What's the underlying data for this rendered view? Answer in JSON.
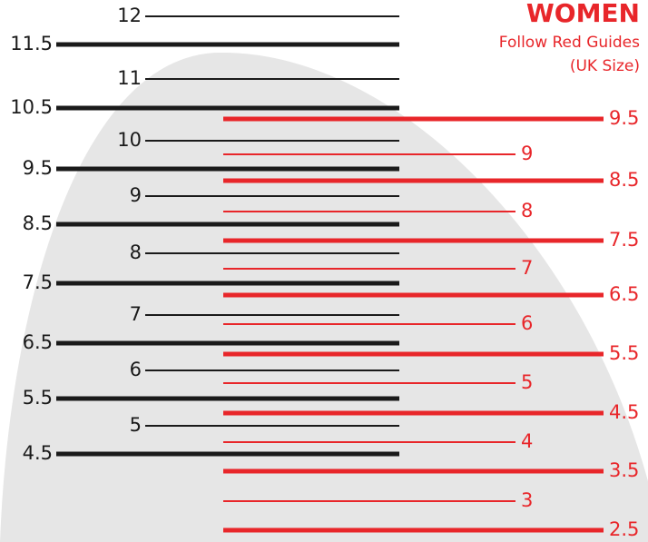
{
  "header": {
    "title": "WOMEN",
    "subtitle_lines": [
      "Follow Red Guides",
      "(UK Size)"
    ]
  },
  "black_sizes": [
    "12",
    "11.5",
    "11",
    "10.5",
    "10",
    "9.5",
    "9",
    "8.5",
    "8",
    "7.5",
    "7",
    "6.5",
    "6",
    "5.5",
    "5",
    "4.5"
  ],
  "red_sizes": [
    "9.5",
    "9",
    "8.5",
    "8",
    "7.5",
    "7",
    "6.5",
    "6",
    "5.5",
    "5",
    "4.5",
    "4",
    "3.5",
    "3",
    "2.5"
  ]
}
